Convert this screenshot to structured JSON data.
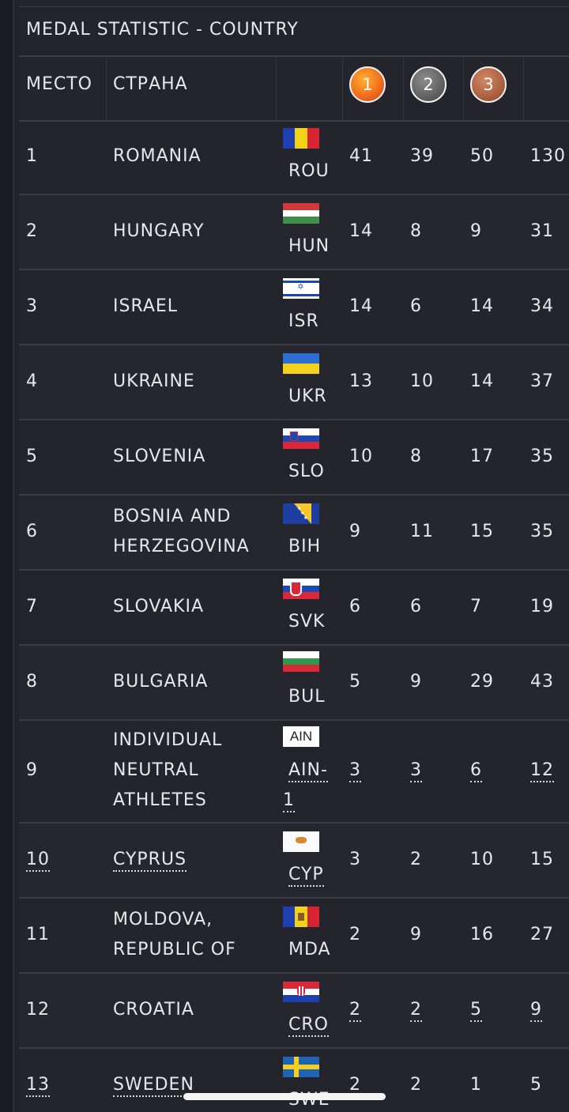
{
  "title": "MEDAL STATISTIC - COUNTRY",
  "header": {
    "place": "МЕСТО",
    "country": "СТРАНА",
    "gold": "1",
    "silver": "2",
    "bronze": "3"
  },
  "colors": {
    "background": "#24252c",
    "text": "#e8e8ea",
    "gold": "#f06a1c",
    "silver": "#5a5a5a",
    "bronze": "#a65a3a"
  },
  "rows": [
    {
      "place": "1",
      "country": [
        "ROMANIA"
      ],
      "code": "ROU",
      "gold": "41",
      "silver": "39",
      "bronze": "50",
      "total": "130"
    },
    {
      "place": "2",
      "country": [
        "HUNGARY"
      ],
      "code": "HUN",
      "gold": "14",
      "silver": "8",
      "bronze": "9",
      "total": "31"
    },
    {
      "place": "3",
      "country": [
        "ISRAEL"
      ],
      "code": "ISR",
      "gold": "14",
      "silver": "6",
      "bronze": "14",
      "total": "34"
    },
    {
      "place": "4",
      "country": [
        "UKRAINE"
      ],
      "code": "UKR",
      "gold": "13",
      "silver": "10",
      "bronze": "14",
      "total": "37"
    },
    {
      "place": "5",
      "country": [
        "SLOVENIA"
      ],
      "code": "SLO",
      "gold": "10",
      "silver": "8",
      "bronze": "17",
      "total": "35"
    },
    {
      "place": "6",
      "country": [
        "BOSNIA AND",
        "HERZEGOVINA"
      ],
      "code": "BIH",
      "gold": "9",
      "silver": "11",
      "bronze": "15",
      "total": "35"
    },
    {
      "place": "7",
      "country": [
        "SLOVAKIA"
      ],
      "code": "SVK",
      "gold": "6",
      "silver": "6",
      "bronze": "7",
      "total": "19"
    },
    {
      "place": "8",
      "country": [
        "BULGARIA"
      ],
      "code": "BUL",
      "gold": "5",
      "silver": "9",
      "bronze": "29",
      "total": "43"
    },
    {
      "place": "9",
      "country": [
        "INDIVIDUAL",
        "NEUTRAL",
        "ATHLETES"
      ],
      "code": [
        "AIN-",
        "1"
      ],
      "flag_text": "AIN",
      "gold": "3",
      "silver": "3",
      "bronze": "6",
      "total": "12"
    },
    {
      "place": "10",
      "country": [
        "CYPRUS"
      ],
      "code": "CYP",
      "gold": "3",
      "silver": "2",
      "bronze": "10",
      "total": "15"
    },
    {
      "place": "11",
      "country": [
        "MOLDOVA,",
        "REPUBLIC OF"
      ],
      "code": "MDA",
      "gold": "2",
      "silver": "9",
      "bronze": "16",
      "total": "27"
    },
    {
      "place": "12",
      "country": [
        "CROATIA"
      ],
      "code": "CRO",
      "gold": "2",
      "silver": "2",
      "bronze": "5",
      "total": "9"
    },
    {
      "place": "13",
      "country": [
        "SWEDEN"
      ],
      "code": "SWE",
      "gold": "2",
      "silver": "2",
      "bronze": "1",
      "total": "5"
    }
  ]
}
